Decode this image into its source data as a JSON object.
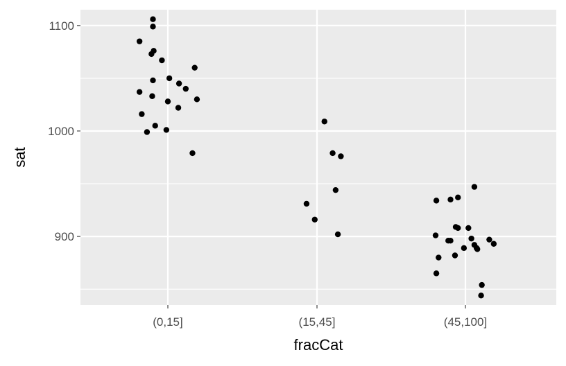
{
  "chart_data": {
    "type": "scatter",
    "title": "",
    "xlabel": "fracCat",
    "ylabel": "sat",
    "x_type": "categorical",
    "categories": [
      "(0,15]",
      "(15,45]",
      "(45,100]"
    ],
    "ylim": [
      835,
      1115
    ],
    "y_ticks": [
      900,
      1000,
      1100
    ],
    "grid": true,
    "legend": "none",
    "colors": {
      "panel": "#ebebeb",
      "grid": "#ffffff",
      "point": "#000000",
      "tick_text": "#4d4d4d"
    },
    "points": [
      {
        "x": "(0,15]",
        "jitter": -0.38,
        "y": 1085
      },
      {
        "x": "(0,15]",
        "jitter": -0.2,
        "y": 1106
      },
      {
        "x": "(0,15]",
        "jitter": -0.2,
        "y": 1099
      },
      {
        "x": "(0,15]",
        "jitter": -0.22,
        "y": 1073
      },
      {
        "x": "(0,15]",
        "jitter": -0.19,
        "y": 1076
      },
      {
        "x": "(0,15]",
        "jitter": -0.08,
        "y": 1067
      },
      {
        "x": "(0,15]",
        "jitter": -0.2,
        "y": 1048
      },
      {
        "x": "(0,15]",
        "jitter": 0.02,
        "y": 1050
      },
      {
        "x": "(0,15]",
        "jitter": 0.36,
        "y": 1060
      },
      {
        "x": "(0,15]",
        "jitter": -0.38,
        "y": 1037
      },
      {
        "x": "(0,15]",
        "jitter": -0.21,
        "y": 1033
      },
      {
        "x": "(0,15]",
        "jitter": 0.15,
        "y": 1045
      },
      {
        "x": "(0,15]",
        "jitter": 0.24,
        "y": 1040
      },
      {
        "x": "(0,15]",
        "jitter": 0.0,
        "y": 1028
      },
      {
        "x": "(0,15]",
        "jitter": 0.39,
        "y": 1030
      },
      {
        "x": "(0,15]",
        "jitter": 0.14,
        "y": 1022
      },
      {
        "x": "(0,15]",
        "jitter": -0.35,
        "y": 1016
      },
      {
        "x": "(0,15]",
        "jitter": -0.17,
        "y": 1005
      },
      {
        "x": "(0,15]",
        "jitter": -0.28,
        "y": 999
      },
      {
        "x": "(0,15]",
        "jitter": -0.02,
        "y": 1001
      },
      {
        "x": "(0,15]",
        "jitter": 0.33,
        "y": 979
      },
      {
        "x": "(15,45]",
        "jitter": 0.1,
        "y": 1009
      },
      {
        "x": "(15,45]",
        "jitter": 0.21,
        "y": 979
      },
      {
        "x": "(15,45]",
        "jitter": 0.32,
        "y": 976
      },
      {
        "x": "(15,45]",
        "jitter": 0.25,
        "y": 944
      },
      {
        "x": "(15,45]",
        "jitter": -0.14,
        "y": 931
      },
      {
        "x": "(15,45]",
        "jitter": -0.03,
        "y": 916
      },
      {
        "x": "(15,45]",
        "jitter": 0.28,
        "y": 902
      },
      {
        "x": "(45,100]",
        "jitter": 0.12,
        "y": 947
      },
      {
        "x": "(45,100]",
        "jitter": -0.39,
        "y": 934
      },
      {
        "x": "(45,100]",
        "jitter": -0.2,
        "y": 935
      },
      {
        "x": "(45,100]",
        "jitter": -0.1,
        "y": 937
      },
      {
        "x": "(45,100]",
        "jitter": -0.13,
        "y": 909
      },
      {
        "x": "(45,100]",
        "jitter": -0.1,
        "y": 908
      },
      {
        "x": "(45,100]",
        "jitter": 0.04,
        "y": 908
      },
      {
        "x": "(45,100]",
        "jitter": -0.4,
        "y": 901
      },
      {
        "x": "(45,100]",
        "jitter": 0.08,
        "y": 898
      },
      {
        "x": "(45,100]",
        "jitter": -0.23,
        "y": 896
      },
      {
        "x": "(45,100]",
        "jitter": -0.2,
        "y": 896
      },
      {
        "x": "(45,100]",
        "jitter": 0.32,
        "y": 897
      },
      {
        "x": "(45,100]",
        "jitter": 0.38,
        "y": 893
      },
      {
        "x": "(45,100]",
        "jitter": 0.12,
        "y": 892
      },
      {
        "x": "(45,100]",
        "jitter": 0.15,
        "y": 889
      },
      {
        "x": "(45,100]",
        "jitter": 0.16,
        "y": 888
      },
      {
        "x": "(45,100]",
        "jitter": -0.02,
        "y": 889
      },
      {
        "x": "(45,100]",
        "jitter": -0.14,
        "y": 882
      },
      {
        "x": "(45,100]",
        "jitter": -0.36,
        "y": 880
      },
      {
        "x": "(45,100]",
        "jitter": -0.39,
        "y": 865
      },
      {
        "x": "(45,100]",
        "jitter": 0.22,
        "y": 854
      },
      {
        "x": "(45,100]",
        "jitter": 0.21,
        "y": 844
      }
    ]
  }
}
